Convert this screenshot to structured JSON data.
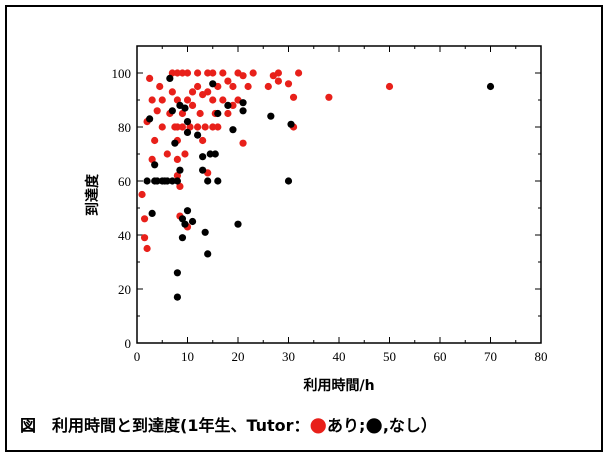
{
  "caption": {
    "text_before": "図　利用時間と到達度(1年生、Tutor：",
    "marker_red": "●",
    "text_mid": "あり;",
    "marker_black": "●",
    "text_after": ",なし）"
  },
  "colors": {
    "tutor_yes": "#e8201a",
    "tutor_no": "#000000"
  },
  "chart_data": {
    "type": "scatter",
    "xlabel": "利用時間/h",
    "ylabel": "到達度",
    "xlim": [
      0,
      80
    ],
    "ylim": [
      0,
      110
    ],
    "x_ticks": [
      0,
      10,
      20,
      30,
      40,
      50,
      60,
      70,
      80
    ],
    "y_ticks": [
      0,
      20,
      40,
      60,
      80,
      100
    ],
    "grid": false,
    "series": [
      {
        "color": "#e8201a",
        "points": [
          [
            1,
            55
          ],
          [
            1.5,
            46
          ],
          [
            1.5,
            39
          ],
          [
            2,
            35
          ],
          [
            2,
            82
          ],
          [
            2.5,
            98
          ],
          [
            3,
            90
          ],
          [
            3,
            68
          ],
          [
            3.5,
            75
          ],
          [
            4,
            86
          ],
          [
            4.5,
            95
          ],
          [
            5,
            80
          ],
          [
            5,
            90
          ],
          [
            6,
            70
          ],
          [
            6.5,
            85
          ],
          [
            7,
            93
          ],
          [
            7,
            100
          ],
          [
            7.5,
            80
          ],
          [
            8,
            100
          ],
          [
            8,
            90
          ],
          [
            8,
            80
          ],
          [
            8,
            75
          ],
          [
            8,
            68
          ],
          [
            8,
            62
          ],
          [
            8.5,
            58
          ],
          [
            8.5,
            47
          ],
          [
            9,
            100
          ],
          [
            9,
            85
          ],
          [
            9,
            80
          ],
          [
            9.5,
            70
          ],
          [
            10,
            100
          ],
          [
            10,
            90
          ],
          [
            10,
            43
          ],
          [
            10.5,
            80
          ],
          [
            11,
            93
          ],
          [
            11,
            88
          ],
          [
            12,
            100
          ],
          [
            12,
            95
          ],
          [
            12,
            80
          ],
          [
            12.5,
            85
          ],
          [
            13,
            92
          ],
          [
            13,
            75
          ],
          [
            13.5,
            80
          ],
          [
            14,
            100
          ],
          [
            14,
            93
          ],
          [
            14,
            63
          ],
          [
            15,
            100
          ],
          [
            15,
            90
          ],
          [
            15,
            80
          ],
          [
            15.5,
            85
          ],
          [
            16,
            95
          ],
          [
            16,
            80
          ],
          [
            17,
            100
          ],
          [
            17,
            90
          ],
          [
            18,
            85
          ],
          [
            18,
            97
          ],
          [
            19,
            95
          ],
          [
            19,
            88
          ],
          [
            20,
            100
          ],
          [
            20,
            90
          ],
          [
            21,
            99
          ],
          [
            21,
            74
          ],
          [
            22,
            95
          ],
          [
            23,
            100
          ],
          [
            26,
            95
          ],
          [
            27,
            99
          ],
          [
            28,
            100
          ],
          [
            28,
            97
          ],
          [
            30,
            96
          ],
          [
            31,
            91
          ],
          [
            31,
            80
          ],
          [
            32,
            100
          ],
          [
            38,
            91
          ],
          [
            50,
            95
          ]
        ]
      },
      {
        "color": "#000000",
        "points": [
          [
            2,
            60
          ],
          [
            2.5,
            83
          ],
          [
            3,
            48
          ],
          [
            3.5,
            66
          ],
          [
            3.5,
            60
          ],
          [
            4,
            60
          ],
          [
            5,
            60
          ],
          [
            5.5,
            60
          ],
          [
            6,
            60
          ],
          [
            6.5,
            98
          ],
          [
            7,
            60
          ],
          [
            7,
            86
          ],
          [
            7.5,
            74
          ],
          [
            8,
            60
          ],
          [
            8,
            26
          ],
          [
            8,
            17
          ],
          [
            8.5,
            88
          ],
          [
            8.5,
            64
          ],
          [
            9,
            46
          ],
          [
            9,
            39
          ],
          [
            9.5,
            44
          ],
          [
            9.5,
            87
          ],
          [
            10,
            82
          ],
          [
            10,
            78
          ],
          [
            10,
            49
          ],
          [
            11,
            45
          ],
          [
            12,
            77
          ],
          [
            13,
            64
          ],
          [
            13,
            69
          ],
          [
            13.5,
            41
          ],
          [
            14,
            33
          ],
          [
            14,
            60
          ],
          [
            14.5,
            70
          ],
          [
            15,
            96
          ],
          [
            15.5,
            70
          ],
          [
            16,
            60
          ],
          [
            16,
            85
          ],
          [
            18,
            88
          ],
          [
            19,
            79
          ],
          [
            20,
            44
          ],
          [
            21,
            86
          ],
          [
            21,
            89
          ],
          [
            26.5,
            84
          ],
          [
            30,
            60
          ],
          [
            30.5,
            81
          ],
          [
            70,
            95
          ]
        ]
      }
    ]
  }
}
